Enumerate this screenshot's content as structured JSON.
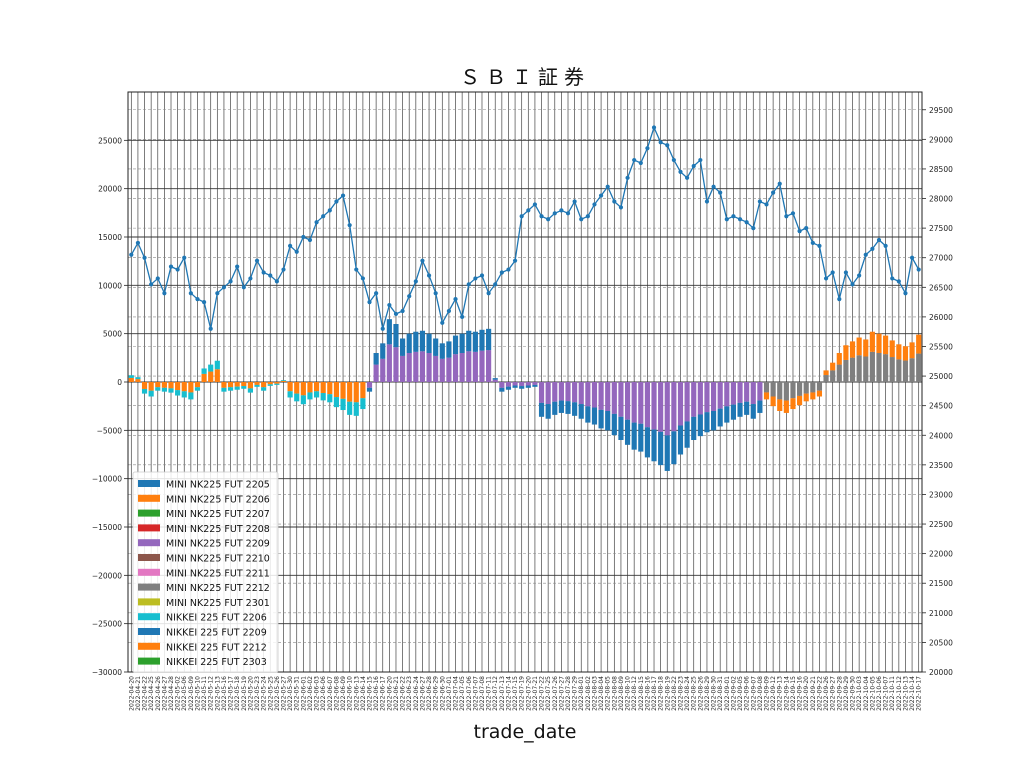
{
  "chart_data": {
    "type": "bar+line",
    "title": "ＳＢＩ証券",
    "xlabel": "trade_date",
    "ylim_left": [
      -30000,
      30000
    ],
    "yticks_left": [
      -30000,
      -25000,
      -20000,
      -15000,
      -10000,
      -5000,
      0,
      5000,
      10000,
      15000,
      20000,
      25000
    ],
    "ylim_right": [
      20000,
      29800
    ],
    "yticks_right": [
      20000,
      20500,
      21000,
      21500,
      22000,
      22500,
      23000,
      23500,
      24000,
      24500,
      25000,
      25500,
      26000,
      26500,
      27000,
      27500,
      28000,
      28500,
      29000,
      29500
    ],
    "grid": true,
    "legend_position": "lower-left",
    "dates": [
      "2022-04-20",
      "2022-04-21",
      "2022-04-22",
      "2022-04-25",
      "2022-04-26",
      "2022-04-27",
      "2022-04-28",
      "2022-05-02",
      "2022-05-06",
      "2022-05-09",
      "2022-05-10",
      "2022-05-11",
      "2022-05-12",
      "2022-05-13",
      "2022-05-16",
      "2022-05-17",
      "2022-05-18",
      "2022-05-19",
      "2022-05-20",
      "2022-05-23",
      "2022-05-24",
      "2022-05-25",
      "2022-05-26",
      "2022-05-27",
      "2022-05-30",
      "2022-05-31",
      "2022-06-01",
      "2022-06-02",
      "2022-06-03",
      "2022-06-06",
      "2022-06-07",
      "2022-06-08",
      "2022-06-09",
      "2022-06-10",
      "2022-06-13",
      "2022-06-14",
      "2022-06-15",
      "2022-06-16",
      "2022-06-17",
      "2022-06-20",
      "2022-06-21",
      "2022-06-22",
      "2022-06-23",
      "2022-06-24",
      "2022-06-27",
      "2022-06-28",
      "2022-06-29",
      "2022-06-30",
      "2022-07-01",
      "2022-07-04",
      "2022-07-05",
      "2022-07-06",
      "2022-07-07",
      "2022-07-08",
      "2022-07-11",
      "2022-07-12",
      "2022-07-13",
      "2022-07-14",
      "2022-07-15",
      "2022-07-19",
      "2022-07-20",
      "2022-07-21",
      "2022-07-22",
      "2022-07-25",
      "2022-07-26",
      "2022-07-27",
      "2022-07-28",
      "2022-07-29",
      "2022-08-01",
      "2022-08-02",
      "2022-08-03",
      "2022-08-04",
      "2022-08-05",
      "2022-08-08",
      "2022-08-09",
      "2022-08-10",
      "2022-08-12",
      "2022-08-15",
      "2022-08-16",
      "2022-08-17",
      "2022-08-18",
      "2022-08-19",
      "2022-08-22",
      "2022-08-23",
      "2022-08-24",
      "2022-08-25",
      "2022-08-26",
      "2022-08-29",
      "2022-08-30",
      "2022-08-31",
      "2022-09-01",
      "2022-09-02",
      "2022-09-05",
      "2022-09-06",
      "2022-09-07",
      "2022-09-08",
      "2022-09-09",
      "2022-09-12",
      "2022-09-13",
      "2022-09-14",
      "2022-09-15",
      "2022-09-16",
      "2022-09-20",
      "2022-09-21",
      "2022-09-22",
      "2022-09-26",
      "2022-09-27",
      "2022-09-28",
      "2022-09-29",
      "2022-09-30",
      "2022-10-03",
      "2022-10-04",
      "2022-10-05",
      "2022-10-06",
      "2022-10-07",
      "2022-10-11",
      "2022-10-12",
      "2022-10-13",
      "2022-10-14",
      "2022-10-17"
    ],
    "price_line": {
      "color": "#1f77b4",
      "values": [
        27050,
        27250,
        27000,
        26550,
        26650,
        26400,
        26850,
        26800,
        27000,
        26400,
        26300,
        26250,
        25800,
        26400,
        26500,
        26600,
        26850,
        26500,
        26650,
        26950,
        26750,
        26700,
        26600,
        26800,
        27200,
        27100,
        27350,
        27300,
        27600,
        27700,
        27800,
        27950,
        28050,
        27550,
        26800,
        26650,
        26250,
        26400,
        25800,
        26200,
        26050,
        26100,
        26350,
        26600,
        26950,
        26700,
        26400,
        25900,
        26100,
        26300,
        26000,
        26550,
        26650,
        26700,
        26400,
        26550,
        26750,
        26800,
        26950,
        27700,
        27800,
        27900,
        27700,
        27650,
        27750,
        27800,
        27750,
        27950,
        27650,
        27700,
        27900,
        28050,
        28200,
        27950,
        27850,
        28350,
        28650,
        28600,
        28850,
        29200,
        28950,
        28900,
        28650,
        28450,
        28350,
        28550,
        28650,
        27950,
        28200,
        28100,
        27650,
        27700,
        27650,
        27600,
        27500,
        27950,
        27900,
        28100,
        28250,
        27700,
        27750,
        27450,
        27500,
        27250,
        27200,
        26650,
        26750,
        26300,
        26750,
        26550,
        26700,
        27050,
        27150,
        27300,
        27200,
        26650,
        26600,
        26400,
        27000,
        26800
      ]
    },
    "series": [
      {
        "name": "MINI NK225 FUT 2205",
        "color": "#1f77b4"
      },
      {
        "name": "MINI NK225 FUT 2206",
        "color": "#ff7f0e"
      },
      {
        "name": "MINI NK225 FUT 2207",
        "color": "#2ca02c"
      },
      {
        "name": "MINI NK225 FUT 2208",
        "color": "#d62728"
      },
      {
        "name": "MINI NK225 FUT 2209",
        "color": "#9467bd"
      },
      {
        "name": "MINI NK225 FUT 2210",
        "color": "#8c564b"
      },
      {
        "name": "MINI NK225 FUT 2211",
        "color": "#e377c2"
      },
      {
        "name": "MINI NK225 FUT 2212",
        "color": "#7f7f7f"
      },
      {
        "name": "MINI NK225 FUT 2301",
        "color": "#bcbd22"
      },
      {
        "name": "NIKKEI 225 FUT 2206",
        "color": "#17becf"
      },
      {
        "name": "NIKKEI 225 FUT 2209",
        "color": "#1f77b4"
      },
      {
        "name": "NIKKEI 225 FUT 2212",
        "color": "#ff7f0e"
      },
      {
        "name": "NIKKEI 225 FUT 2303",
        "color": "#2ca02c"
      }
    ],
    "bars_approx": {
      "segment1": {
        "series": [
          "MINI NK225 FUT 2206",
          "NIKKEI 225 FUT 2206"
        ],
        "dates": "2022-04-20 to 2022-06-09",
        "values": [
          700,
          500,
          -1200,
          -1500,
          -900,
          -1000,
          -1100,
          -1400,
          -1600,
          -1800,
          -900,
          1400,
          1800,
          2200,
          -1000,
          -900,
          -800,
          -700,
          -1100,
          -500,
          -900,
          -400,
          -300,
          200,
          -1600,
          -2000,
          -2300,
          -1800,
          -1600,
          -1900,
          -2100,
          -2600,
          -2900,
          -3400,
          -3500,
          -2800
        ]
      },
      "segment2": {
        "series": [
          "MINI NK225 FUT 2209",
          "NIKKEI 225 FUT 2209"
        ],
        "dates": "2022-06-10 to 2022-09-08",
        "values": [
          -1000,
          3000,
          4000,
          6500,
          6000,
          4500,
          5000,
          5200,
          5300,
          5000,
          4500,
          4000,
          4200,
          4800,
          5000,
          5300,
          5200,
          5400,
          5500,
          400,
          -1000,
          -800,
          -600,
          -700,
          -600,
          -500,
          -3600,
          -3800,
          -3400,
          -3200,
          -3300,
          -3500,
          -3800,
          -4200,
          -4400,
          -4800,
          -5000,
          -5500,
          -6000,
          -6500,
          -7000,
          -7200,
          -7800,
          -8200,
          -8600,
          -9200,
          -8500,
          -7500,
          -6800,
          -6000,
          -5600,
          -5200,
          -5000,
          -4600,
          -4200,
          -3900,
          -3600,
          -3400,
          -3800,
          -3200
        ]
      },
      "segment3": {
        "series": [
          "MINI NK225 FUT 2212",
          "NIKKEI 225 FUT 2212"
        ],
        "dates": "2022-09-09 to 2022-10-17",
        "values": [
          -1800,
          -2500,
          -3000,
          -3200,
          -2800,
          -2400,
          -2000,
          -1800,
          -1500,
          1200,
          2000,
          3000,
          3800,
          4200,
          4600,
          4400,
          5200,
          5000,
          4800,
          4300,
          3900,
          3700,
          4100,
          4900,
          5200,
          5500,
          6300,
          2300,
          2800
        ]
      }
    }
  }
}
